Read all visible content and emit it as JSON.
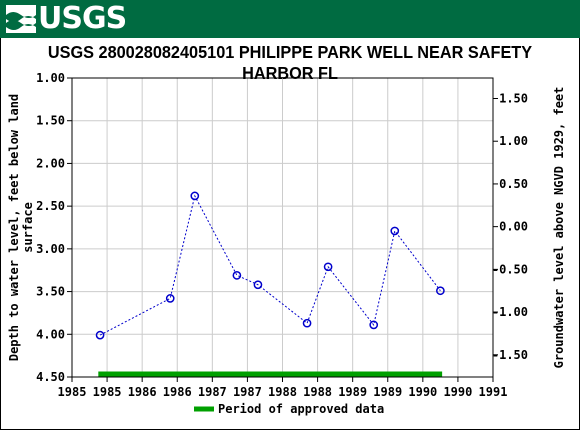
{
  "header": {
    "logo_text": "USGS",
    "logo_icon": "usgs-wave-icon",
    "banner_color": "#006b41"
  },
  "chart_data": {
    "type": "scatter",
    "title": "USGS 280028082405101 PHILIPPE PARK WELL NEAR SAFETY HARBOR FL",
    "ylabel_left": [
      "Depth to water level, feet below land",
      "surface"
    ],
    "ylabel_right": "Groundwater level above NGVD 1929, feet",
    "x_ticks": [
      "1985",
      "1985",
      "1986",
      "1986",
      "1987",
      "1987",
      "1988",
      "1988",
      "1989",
      "1989",
      "1990",
      "1990",
      "1991"
    ],
    "xlim": [
      0,
      12
    ],
    "ylim_left": [
      1.0,
      4.5
    ],
    "y_ticks_left": [
      "1.00",
      "1.50",
      "2.00",
      "2.50",
      "3.00",
      "3.50",
      "4.00",
      "4.50"
    ],
    "y_ticks_right": [
      "1.50",
      "1.00",
      "0.50",
      "0.00",
      "-0.50",
      "-1.00",
      "-1.50"
    ],
    "y_ticks_right_depth": [
      1.24,
      1.74,
      2.24,
      2.74,
      3.24,
      3.74,
      4.24
    ],
    "series": [
      {
        "x": [
          0.8,
          2.8,
          3.5,
          4.7,
          5.3,
          6.7,
          7.3,
          8.6,
          9.2,
          10.5
        ],
        "values": [
          4.01,
          3.58,
          2.38,
          3.31,
          3.42,
          3.87,
          3.21,
          3.89,
          2.79,
          3.49
        ],
        "color": "#0000cc"
      }
    ],
    "approved_period": {
      "x_start": 0.75,
      "x_end": 10.55,
      "color": "#00a000"
    },
    "legend": {
      "label": "Period of approved data",
      "placement": "bottom"
    },
    "grid": true
  }
}
